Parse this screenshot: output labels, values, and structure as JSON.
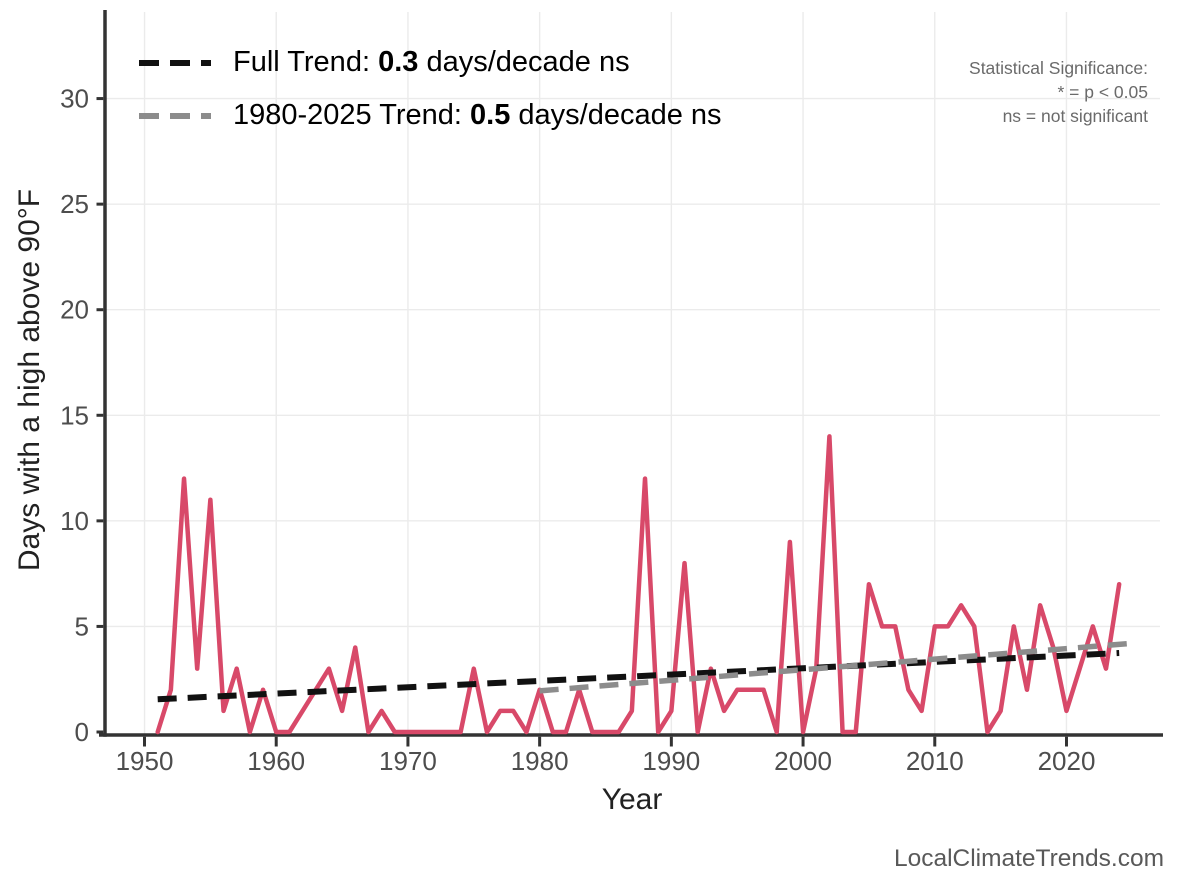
{
  "watermark": "LocalClimateTrends.com",
  "legend": {
    "items": [
      {
        "prefix": "Full Trend: ",
        "value": "0.3",
        "suffix": " days/decade ns",
        "color": "#111111"
      },
      {
        "prefix": "1980-2025 Trend: ",
        "value": "0.5",
        "suffix": " days/decade ns",
        "color": "#8c8c8c"
      }
    ]
  },
  "significance": {
    "lines": [
      "Statistical Significance:",
      "* = p < 0.05",
      "ns = not significant"
    ]
  },
  "colors": {
    "background": "#ffffff",
    "grid": "#ebebeb",
    "axis": "#333333",
    "tick_label": "#4d4d4d",
    "axis_title": "#222222",
    "legend_text": "#000000",
    "significance_text": "#6a6a6a",
    "watermark": "#595959",
    "data_line": "#d84969"
  },
  "chart_data": {
    "type": "line",
    "title": "",
    "xlabel": "Year",
    "ylabel": "Days with a high above 90°F",
    "xlim": [
      1947,
      2027.1
    ],
    "ylim": [
      0,
      34.1
    ],
    "x_ticks": [
      1950,
      1960,
      1970,
      1980,
      1990,
      2000,
      2010,
      2020
    ],
    "y_ticks": [
      0,
      5,
      10,
      15,
      20,
      25,
      30
    ],
    "grid": "major",
    "legend_position": "top-left-inside",
    "series": [
      {
        "name": "Days with a high above 90°F",
        "type": "line",
        "color": "#d84969",
        "width": 4.5,
        "x": [
          1951,
          1952,
          1953,
          1954,
          1955,
          1956,
          1957,
          1958,
          1959,
          1960,
          1961,
          1962,
          1963,
          1964,
          1965,
          1966,
          1967,
          1968,
          1969,
          1970,
          1971,
          1972,
          1973,
          1974,
          1975,
          1976,
          1977,
          1978,
          1979,
          1980,
          1981,
          1982,
          1983,
          1984,
          1985,
          1986,
          1987,
          1988,
          1989,
          1990,
          1991,
          1992,
          1993,
          1994,
          1995,
          1996,
          1997,
          1998,
          1999,
          2000,
          2001,
          2002,
          2003,
          2004,
          2005,
          2006,
          2007,
          2008,
          2009,
          2010,
          2011,
          2012,
          2013,
          2014,
          2015,
          2016,
          2017,
          2018,
          2019,
          2020,
          2021,
          2022,
          2023,
          2024
        ],
        "values": [
          0,
          2,
          12,
          3,
          11,
          1,
          3,
          0,
          2,
          0,
          0,
          1,
          2,
          3,
          1,
          4,
          0,
          1,
          0,
          0,
          0,
          0,
          0,
          0,
          3,
          0,
          1,
          1,
          0,
          2,
          0,
          0,
          2,
          0,
          0,
          0,
          1,
          12,
          0,
          1,
          8,
          0,
          3,
          1,
          2,
          2,
          2,
          0,
          9,
          0,
          3,
          14,
          0,
          0,
          7,
          5,
          5,
          2,
          1,
          5,
          5,
          6,
          5,
          0,
          1,
          5,
          2,
          6,
          4,
          1,
          3,
          5,
          3,
          7
        ]
      },
      {
        "name": "Full Trend: 0.3 days/decade ns",
        "type": "line",
        "dash": [
          19,
          11
        ],
        "color": "#111111",
        "width": 6,
        "slope_days_per_decade": 0.3,
        "significance": "ns",
        "x": [
          1951,
          2024
        ],
        "values": [
          1.55,
          3.74
        ]
      },
      {
        "name": "1980-2025 Trend: 0.5 days/decade ns",
        "type": "line",
        "dash": [
          19,
          11
        ],
        "color": "#8c8c8c",
        "width": 5.5,
        "slope_days_per_decade": 0.5,
        "significance": "ns",
        "x": [
          1980,
          2024.6
        ],
        "values": [
          1.95,
          4.18
        ]
      }
    ]
  }
}
